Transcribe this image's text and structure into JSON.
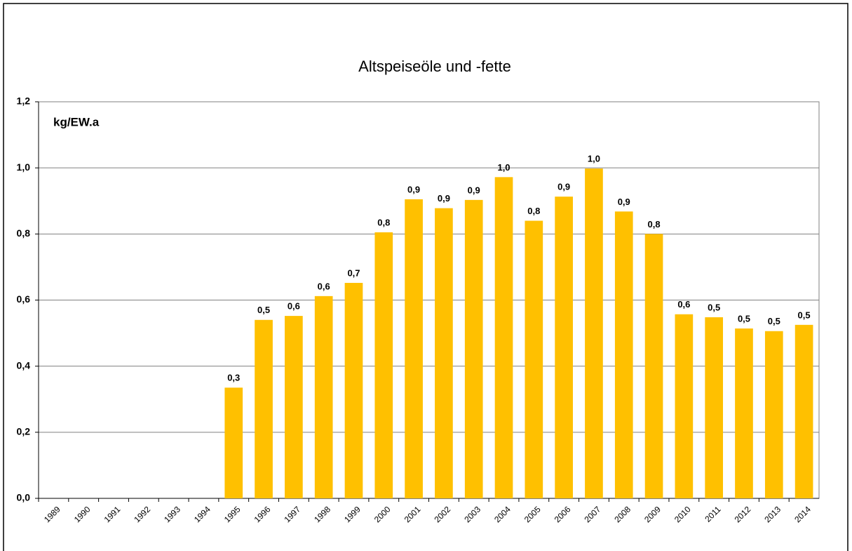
{
  "chart_data": {
    "type": "bar",
    "title": "Altspeiseöle und -fette",
    "unit_label": "kg/EW.a",
    "categories": [
      "1989",
      "1990",
      "1991",
      "1992",
      "1993",
      "1994",
      "1995",
      "1996",
      "1997",
      "1998",
      "1999",
      "2000",
      "2001",
      "2002",
      "2003",
      "2004",
      "2005",
      "2006",
      "2007",
      "2008",
      "2009",
      "2010",
      "2011",
      "2012",
      "2013",
      "2014"
    ],
    "values": [
      null,
      null,
      null,
      null,
      null,
      null,
      0.335,
      0.54,
      0.552,
      0.612,
      0.652,
      0.805,
      0.905,
      0.878,
      0.903,
      0.972,
      0.84,
      0.913,
      0.998,
      0.868,
      0.8,
      0.557,
      0.548,
      0.514,
      0.506,
      0.525
    ],
    "value_labels": [
      null,
      null,
      null,
      null,
      null,
      null,
      "0,3",
      "0,5",
      "0,6",
      "0,6",
      "0,7",
      "0,8",
      "0,9",
      "0,9",
      "0,9",
      "1,0",
      "0,8",
      "0,9",
      "1,0",
      "0,9",
      "0,8",
      "0,6",
      "0,5",
      "0,5",
      "0,5",
      "0,5"
    ],
    "color": "#ffc000",
    "ylim": [
      0,
      1.2
    ],
    "yticks": [
      {
        "value": 0,
        "label": "0,0"
      },
      {
        "value": 0.2,
        "label": "0,2"
      },
      {
        "value": 0.4,
        "label": "0,4"
      },
      {
        "value": 0.6,
        "label": "0,6"
      },
      {
        "value": 0.8,
        "label": "0,8"
      },
      {
        "value": 1.0,
        "label": "1,0"
      },
      {
        "value": 1.2,
        "label": "1,2"
      }
    ],
    "grid": true
  }
}
